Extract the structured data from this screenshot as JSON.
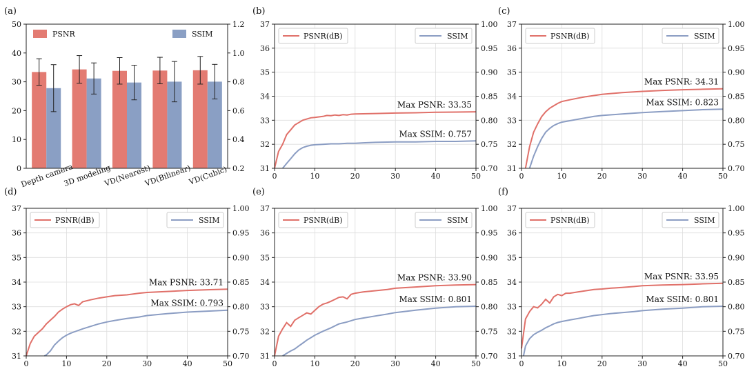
{
  "figure": {
    "colors": {
      "psnr": "#e07069",
      "ssim": "#8b9dc3",
      "bar_psnr": "#e37b72",
      "bar_ssim": "#8a9fc4"
    }
  },
  "chart_data": [
    {
      "id": "a",
      "panel_label": "(a)",
      "type": "bar",
      "categories": [
        "Depth camera",
        "3D modeling",
        "VD(Nearest)",
        "VD(Bilinear)",
        "VD(Cubic)"
      ],
      "series": [
        {
          "name": "PSNR",
          "axis": "left",
          "values": [
            33.4,
            34.3,
            33.8,
            33.9,
            34.0
          ],
          "errors": [
            4.6,
            4.8,
            4.6,
            4.6,
            4.8
          ]
        },
        {
          "name": "SSIM",
          "axis": "right",
          "values": [
            0.756,
            0.823,
            0.795,
            0.801,
            0.801
          ],
          "errors": [
            0.163,
            0.108,
            0.12,
            0.14,
            0.12
          ]
        }
      ],
      "ylim_left": [
        0,
        50
      ],
      "yticks_left": [
        "0",
        "10",
        "20",
        "30",
        "40",
        "50"
      ],
      "ylim_right": [
        0.2,
        1.2
      ],
      "yticks_right": [
        "0.2",
        "0.4",
        "0.6",
        "0.8",
        "1.0",
        "1.2"
      ],
      "legend": {
        "left": "PSNR",
        "right": "SSIM"
      }
    },
    {
      "id": "b",
      "panel_label": "(b)",
      "type": "line",
      "xlim": [
        0,
        50
      ],
      "xticks": [
        "0",
        "10",
        "20",
        "30",
        "40",
        "50"
      ],
      "ylim_left": [
        31,
        37
      ],
      "yticks_left": [
        "31",
        "32",
        "33",
        "34",
        "35",
        "36",
        "37"
      ],
      "ylim_right": [
        0.7,
        1.0
      ],
      "yticks_right": [
        "0.70",
        "0.75",
        "0.80",
        "0.85",
        "0.90",
        "0.95",
        "1.00"
      ],
      "legend": {
        "left": "PSNR(dB)",
        "right": "SSIM"
      },
      "series": [
        {
          "name": "PSNR(dB)",
          "axis": "left",
          "x": [
            0,
            1,
            2,
            3,
            4,
            5,
            6,
            7,
            8,
            9,
            10,
            11,
            12,
            13,
            14,
            15,
            16,
            17,
            18,
            19,
            20,
            25,
            30,
            35,
            40,
            45,
            50
          ],
          "y": [
            31.0,
            31.7,
            32.0,
            32.4,
            32.6,
            32.8,
            32.9,
            33.0,
            33.05,
            33.1,
            33.12,
            33.14,
            33.16,
            33.2,
            33.19,
            33.22,
            33.2,
            33.23,
            33.22,
            33.25,
            33.26,
            33.28,
            33.3,
            33.31,
            33.33,
            33.34,
            33.35
          ]
        },
        {
          "name": "SSIM",
          "axis": "right",
          "x": [
            2,
            3,
            4,
            5,
            6,
            7,
            8,
            9,
            10,
            12,
            14,
            16,
            18,
            20,
            22,
            25,
            30,
            35,
            40,
            45,
            50
          ],
          "y": [
            0.7,
            0.71,
            0.72,
            0.73,
            0.738,
            0.743,
            0.746,
            0.748,
            0.749,
            0.75,
            0.751,
            0.751,
            0.752,
            0.752,
            0.753,
            0.754,
            0.755,
            0.755,
            0.756,
            0.756,
            0.757
          ]
        }
      ],
      "annotations": [
        "Max PSNR: 33.35",
        "Max SSIM: 0.757"
      ]
    },
    {
      "id": "c",
      "panel_label": "(c)",
      "type": "line",
      "xlim": [
        0,
        50
      ],
      "xticks": [
        "0",
        "10",
        "20",
        "30",
        "40",
        "50"
      ],
      "ylim_left": [
        31,
        37
      ],
      "yticks_left": [
        "31",
        "32",
        "33",
        "34",
        "35",
        "36",
        "37"
      ],
      "ylim_right": [
        0.7,
        1.0
      ],
      "yticks_right": [
        "0.70",
        "0.75",
        "0.80",
        "0.85",
        "0.90",
        "0.95",
        "1.00"
      ],
      "legend": {
        "left": "PSNR(dB)",
        "right": "SSIM"
      },
      "series": [
        {
          "name": "PSNR(dB)",
          "axis": "left",
          "x": [
            1,
            2,
            3,
            4,
            5,
            6,
            7,
            8,
            9,
            10,
            12,
            14,
            16,
            18,
            20,
            25,
            30,
            35,
            40,
            45,
            50
          ],
          "y": [
            31.0,
            31.9,
            32.5,
            32.85,
            33.15,
            33.35,
            33.5,
            33.6,
            33.7,
            33.78,
            33.85,
            33.92,
            33.98,
            34.03,
            34.08,
            34.15,
            34.2,
            34.24,
            34.27,
            34.29,
            34.31
          ]
        },
        {
          "name": "SSIM",
          "axis": "right",
          "x": [
            2,
            3,
            4,
            5,
            6,
            7,
            8,
            9,
            10,
            12,
            14,
            16,
            18,
            20,
            25,
            30,
            35,
            40,
            45,
            50
          ],
          "y": [
            0.7,
            0.725,
            0.745,
            0.762,
            0.775,
            0.783,
            0.789,
            0.793,
            0.796,
            0.799,
            0.802,
            0.805,
            0.808,
            0.81,
            0.813,
            0.816,
            0.818,
            0.82,
            0.822,
            0.823
          ]
        }
      ],
      "annotations": [
        "Max PSNR: 34.31",
        "Max SSIM: 0.823"
      ]
    },
    {
      "id": "d",
      "panel_label": "(d)",
      "type": "line",
      "xlim": [
        0,
        50
      ],
      "xticks": [
        "0",
        "10",
        "20",
        "30",
        "40",
        "50"
      ],
      "ylim_left": [
        31,
        37
      ],
      "yticks_left": [
        "31",
        "32",
        "33",
        "34",
        "35",
        "36",
        "37"
      ],
      "ylim_right": [
        0.7,
        1.0
      ],
      "yticks_right": [
        "0.70",
        "0.75",
        "0.80",
        "0.85",
        "0.90",
        "0.95",
        "1.00"
      ],
      "legend": {
        "left": "PSNR(dB)",
        "right": "SSIM"
      },
      "series": [
        {
          "name": "PSNR(dB)",
          "axis": "left",
          "x": [
            0,
            1,
            2,
            3,
            4,
            5,
            6,
            7,
            8,
            9,
            10,
            11,
            12,
            13,
            14,
            16,
            18,
            20,
            22,
            25,
            28,
            30,
            35,
            40,
            45,
            50
          ],
          "y": [
            31.0,
            31.5,
            31.8,
            31.95,
            32.1,
            32.3,
            32.45,
            32.6,
            32.78,
            32.9,
            33.0,
            33.08,
            33.12,
            33.05,
            33.2,
            33.28,
            33.35,
            33.4,
            33.45,
            33.48,
            33.55,
            33.58,
            33.62,
            33.66,
            33.69,
            33.71
          ]
        },
        {
          "name": "SSIM",
          "axis": "right",
          "x": [
            4.5,
            5,
            6,
            7,
            8,
            9,
            10,
            11,
            12,
            14,
            16,
            18,
            20,
            22,
            25,
            28,
            30,
            35,
            40,
            45,
            50
          ],
          "y": [
            0.7,
            0.702,
            0.71,
            0.722,
            0.73,
            0.737,
            0.742,
            0.746,
            0.749,
            0.755,
            0.76,
            0.765,
            0.769,
            0.772,
            0.776,
            0.779,
            0.782,
            0.786,
            0.789,
            0.791,
            0.793
          ]
        }
      ],
      "annotations": [
        "Max PSNR: 33.71",
        "Max SSIM: 0.793"
      ]
    },
    {
      "id": "e",
      "panel_label": "(e)",
      "type": "line",
      "xlim": [
        0,
        50
      ],
      "xticks": [
        "0",
        "10",
        "20",
        "30",
        "40",
        "50"
      ],
      "ylim_left": [
        31,
        37
      ],
      "yticks_left": [
        "31",
        "32",
        "33",
        "34",
        "35",
        "36",
        "37"
      ],
      "ylim_right": [
        0.7,
        1.0
      ],
      "yticks_right": [
        "0.70",
        "0.75",
        "0.80",
        "0.85",
        "0.90",
        "0.95",
        "1.00"
      ],
      "legend": {
        "left": "PSNR(dB)",
        "right": "SSIM"
      },
      "series": [
        {
          "name": "PSNR(dB)",
          "axis": "left",
          "x": [
            0,
            1,
            2,
            3,
            4,
            5,
            6,
            7,
            8,
            9,
            10,
            11,
            12,
            13,
            14,
            15,
            16,
            17,
            18,
            19,
            20,
            22,
            25,
            28,
            30,
            35,
            40,
            45,
            50
          ],
          "y": [
            31.0,
            31.8,
            32.1,
            32.35,
            32.2,
            32.45,
            32.55,
            32.65,
            32.75,
            32.7,
            32.85,
            33.0,
            33.1,
            33.15,
            33.22,
            33.3,
            33.38,
            33.4,
            33.32,
            33.5,
            33.55,
            33.6,
            33.65,
            33.7,
            33.75,
            33.8,
            33.85,
            33.88,
            33.9
          ]
        },
        {
          "name": "SSIM",
          "axis": "right",
          "x": [
            2,
            3,
            4,
            5,
            6,
            7,
            8,
            9,
            10,
            12,
            14,
            16,
            18,
            20,
            22,
            25,
            28,
            30,
            35,
            40,
            45,
            50
          ],
          "y": [
            0.7,
            0.705,
            0.71,
            0.714,
            0.72,
            0.726,
            0.732,
            0.737,
            0.742,
            0.75,
            0.757,
            0.765,
            0.769,
            0.774,
            0.777,
            0.781,
            0.785,
            0.788,
            0.793,
            0.797,
            0.8,
            0.801
          ]
        }
      ],
      "annotations": [
        "Max PSNR: 33.90",
        "Max SSIM: 0.801"
      ]
    },
    {
      "id": "f",
      "panel_label": "(f)",
      "type": "line",
      "xlim": [
        0,
        50
      ],
      "xticks": [
        "0",
        "10",
        "20",
        "30",
        "40",
        "50"
      ],
      "ylim_left": [
        31,
        37
      ],
      "yticks_left": [
        "31",
        "32",
        "33",
        "34",
        "35",
        "36",
        "37"
      ],
      "ylim_right": [
        0.7,
        1.0
      ],
      "yticks_right": [
        "0.70",
        "0.75",
        "0.80",
        "0.85",
        "0.90",
        "0.95",
        "1.00"
      ],
      "legend": {
        "left": "PSNR(dB)",
        "right": "SSIM"
      },
      "series": [
        {
          "name": "PSNR(dB)",
          "axis": "left",
          "x": [
            0,
            1,
            2,
            3,
            4,
            5,
            6,
            7,
            8,
            9,
            10,
            11,
            12,
            14,
            16,
            18,
            20,
            22,
            25,
            28,
            30,
            35,
            40,
            45,
            50
          ],
          "y": [
            31.3,
            32.5,
            32.8,
            33.0,
            32.95,
            33.1,
            33.3,
            33.15,
            33.4,
            33.5,
            33.45,
            33.55,
            33.55,
            33.6,
            33.65,
            33.7,
            33.72,
            33.75,
            33.78,
            33.82,
            33.85,
            33.88,
            33.9,
            33.93,
            33.95
          ]
        },
        {
          "name": "SSIM",
          "axis": "right",
          "x": [
            0.5,
            1,
            2,
            3,
            4,
            5,
            6,
            7,
            8,
            9,
            10,
            12,
            14,
            16,
            18,
            20,
            22,
            25,
            28,
            30,
            35,
            40,
            45,
            50
          ],
          "y": [
            0.7,
            0.72,
            0.735,
            0.743,
            0.748,
            0.752,
            0.757,
            0.761,
            0.765,
            0.768,
            0.77,
            0.773,
            0.776,
            0.779,
            0.782,
            0.784,
            0.786,
            0.788,
            0.79,
            0.792,
            0.795,
            0.797,
            0.8,
            0.801
          ]
        }
      ],
      "annotations": [
        "Max PSNR: 33.95",
        "Max SSIM: 0.801"
      ]
    }
  ]
}
